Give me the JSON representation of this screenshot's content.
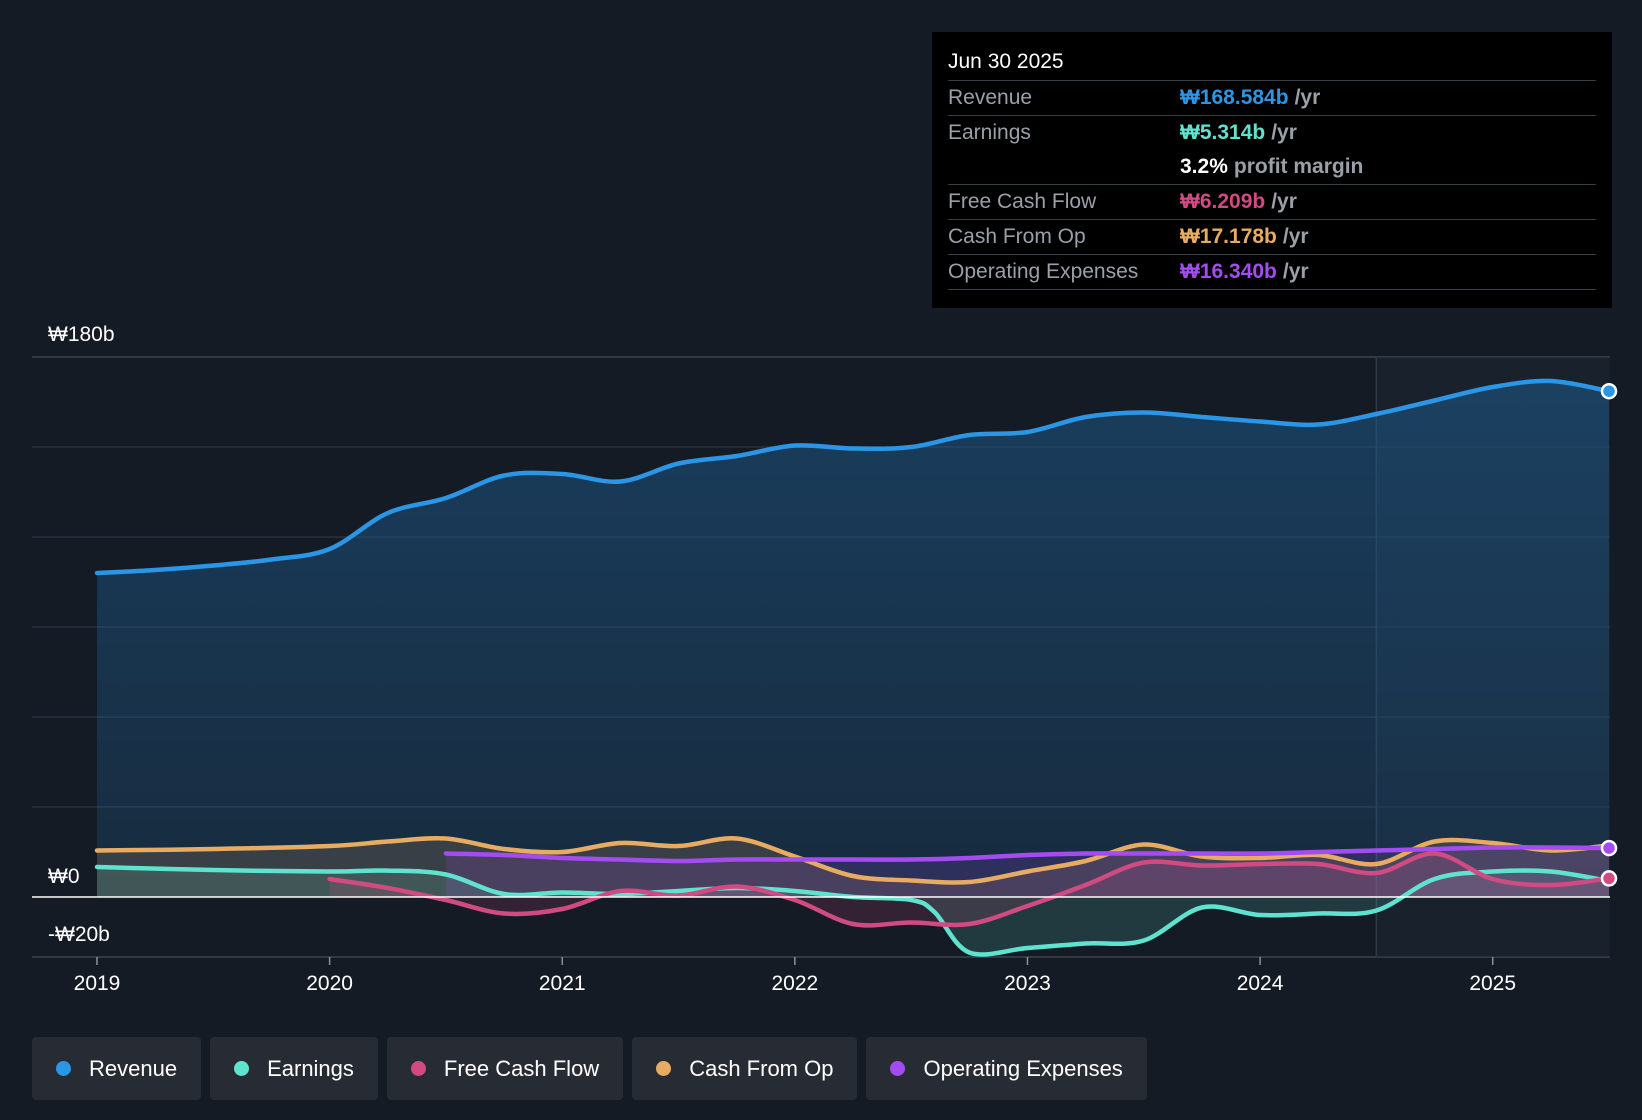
{
  "colors": {
    "revenue": "#2b95e6",
    "earnings": "#5fe3cf",
    "free_cash_flow": "#d14a82",
    "cash_from_op": "#e8ab62",
    "operating_expenses": "#a44cf0"
  },
  "tooltip": {
    "date": "Jun 30 2025",
    "rows": [
      {
        "label": "Revenue",
        "value": "₩168.584b",
        "unit": "/yr"
      },
      {
        "label": "Earnings",
        "value": "₩5.314b",
        "unit": "/yr"
      },
      {
        "label": "",
        "value": "3.2%",
        "unit": "profit margin"
      },
      {
        "label": "Free Cash Flow",
        "value": "₩6.209b",
        "unit": "/yr"
      },
      {
        "label": "Cash From Op",
        "value": "₩17.178b",
        "unit": "/yr"
      },
      {
        "label": "Operating Expenses",
        "value": "₩16.340b",
        "unit": "/yr"
      }
    ]
  },
  "legend": [
    "Revenue",
    "Earnings",
    "Free Cash Flow",
    "Cash From Op",
    "Operating Expenses"
  ],
  "chart_data": {
    "type": "area",
    "title": "",
    "ylim": [
      -20,
      180
    ],
    "ytick_labels": [
      {
        "value": 180,
        "label": "₩180b"
      },
      {
        "value": 0,
        "label": "₩0"
      },
      {
        "value": -20,
        "label": "-₩20b"
      }
    ],
    "x_ticks": [
      2019,
      2020,
      2021,
      2022,
      2023,
      2024,
      2025
    ],
    "xlim": [
      2018.72,
      2025.5
    ],
    "highlight_from": 2024.5,
    "series": [
      {
        "name": "Revenue",
        "color_key": "revenue",
        "fill": true,
        "points": [
          [
            2019.0,
            108.0
          ],
          [
            2019.25,
            109.0
          ],
          [
            2019.5,
            110.5
          ],
          [
            2019.75,
            112.5
          ],
          [
            2020.0,
            116.0
          ],
          [
            2020.25,
            128.0
          ],
          [
            2020.5,
            133.0
          ],
          [
            2020.75,
            140.5
          ],
          [
            2021.0,
            141.0
          ],
          [
            2021.25,
            138.5
          ],
          [
            2021.5,
            144.5
          ],
          [
            2021.75,
            147.0
          ],
          [
            2022.0,
            150.5
          ],
          [
            2022.25,
            149.5
          ],
          [
            2022.5,
            150.0
          ],
          [
            2022.75,
            154.0
          ],
          [
            2023.0,
            155.0
          ],
          [
            2023.25,
            160.0
          ],
          [
            2023.5,
            161.5
          ],
          [
            2023.75,
            160.0
          ],
          [
            2024.0,
            158.5
          ],
          [
            2024.25,
            157.5
          ],
          [
            2024.5,
            161.0
          ],
          [
            2024.75,
            165.5
          ],
          [
            2025.0,
            170.0
          ],
          [
            2025.25,
            172.0
          ],
          [
            2025.5,
            168.6
          ]
        ]
      },
      {
        "name": "Earnings",
        "color_key": "earnings",
        "fill": true,
        "points": [
          [
            2019.0,
            10.0
          ],
          [
            2019.5,
            9.0
          ],
          [
            2020.0,
            8.5
          ],
          [
            2020.25,
            8.8
          ],
          [
            2020.5,
            7.5
          ],
          [
            2020.75,
            1.0
          ],
          [
            2021.0,
            1.5
          ],
          [
            2021.25,
            1.0
          ],
          [
            2021.5,
            2.0
          ],
          [
            2021.75,
            3.0
          ],
          [
            2022.0,
            2.0
          ],
          [
            2022.25,
            0.0
          ],
          [
            2022.5,
            -1.0
          ],
          [
            2022.6,
            -5.0
          ],
          [
            2022.75,
            -18.5
          ],
          [
            2023.0,
            -17.0
          ],
          [
            2023.25,
            -15.5
          ],
          [
            2023.5,
            -14.5
          ],
          [
            2023.75,
            -3.5
          ],
          [
            2024.0,
            -6.0
          ],
          [
            2024.25,
            -5.5
          ],
          [
            2024.5,
            -4.5
          ],
          [
            2024.75,
            6.0
          ],
          [
            2025.0,
            8.5
          ],
          [
            2025.25,
            8.5
          ],
          [
            2025.5,
            5.3
          ]
        ]
      },
      {
        "name": "Free Cash Flow",
        "color_key": "free_cash_flow",
        "fill": true,
        "points": [
          [
            2020.0,
            6.0
          ],
          [
            2020.25,
            3.0
          ],
          [
            2020.5,
            -1.0
          ],
          [
            2020.75,
            -5.5
          ],
          [
            2021.0,
            -4.0
          ],
          [
            2021.25,
            2.0
          ],
          [
            2021.5,
            0.5
          ],
          [
            2021.75,
            3.5
          ],
          [
            2022.0,
            -1.0
          ],
          [
            2022.25,
            -9.0
          ],
          [
            2022.5,
            -8.5
          ],
          [
            2022.75,
            -9.0
          ],
          [
            2023.0,
            -3.0
          ],
          [
            2023.25,
            4.0
          ],
          [
            2023.5,
            11.5
          ],
          [
            2023.75,
            10.5
          ],
          [
            2024.0,
            11.0
          ],
          [
            2024.25,
            11.0
          ],
          [
            2024.5,
            8.0
          ],
          [
            2024.75,
            14.5
          ],
          [
            2025.0,
            6.0
          ],
          [
            2025.25,
            4.0
          ],
          [
            2025.5,
            6.2
          ]
        ]
      },
      {
        "name": "Cash From Op",
        "color_key": "cash_from_op",
        "fill": true,
        "points": [
          [
            2019.0,
            15.5
          ],
          [
            2019.5,
            16.0
          ],
          [
            2020.0,
            17.0
          ],
          [
            2020.25,
            18.5
          ],
          [
            2020.5,
            19.5
          ],
          [
            2020.75,
            16.0
          ],
          [
            2021.0,
            15.0
          ],
          [
            2021.25,
            18.0
          ],
          [
            2021.5,
            17.0
          ],
          [
            2021.75,
            19.5
          ],
          [
            2022.0,
            13.5
          ],
          [
            2022.25,
            7.0
          ],
          [
            2022.5,
            5.5
          ],
          [
            2022.75,
            5.0
          ],
          [
            2023.0,
            8.5
          ],
          [
            2023.25,
            12.0
          ],
          [
            2023.5,
            17.5
          ],
          [
            2023.75,
            13.5
          ],
          [
            2024.0,
            13.0
          ],
          [
            2024.25,
            14.0
          ],
          [
            2024.5,
            11.0
          ],
          [
            2024.75,
            18.5
          ],
          [
            2025.0,
            18.0
          ],
          [
            2025.25,
            15.5
          ],
          [
            2025.5,
            17.2
          ]
        ]
      },
      {
        "name": "Operating Expenses",
        "color_key": "operating_expenses",
        "fill": true,
        "points": [
          [
            2020.5,
            14.5
          ],
          [
            2020.75,
            14.0
          ],
          [
            2021.0,
            13.0
          ],
          [
            2021.25,
            12.5
          ],
          [
            2021.5,
            12.0
          ],
          [
            2021.75,
            12.5
          ],
          [
            2022.0,
            12.5
          ],
          [
            2022.25,
            12.5
          ],
          [
            2022.5,
            12.5
          ],
          [
            2022.75,
            13.0
          ],
          [
            2023.0,
            14.0
          ],
          [
            2023.25,
            14.5
          ],
          [
            2023.5,
            14.5
          ],
          [
            2023.75,
            14.5
          ],
          [
            2024.0,
            14.5
          ],
          [
            2024.25,
            15.0
          ],
          [
            2024.5,
            15.5
          ],
          [
            2024.75,
            16.0
          ],
          [
            2025.0,
            16.5
          ],
          [
            2025.25,
            16.5
          ],
          [
            2025.5,
            16.3
          ]
        ]
      }
    ]
  }
}
